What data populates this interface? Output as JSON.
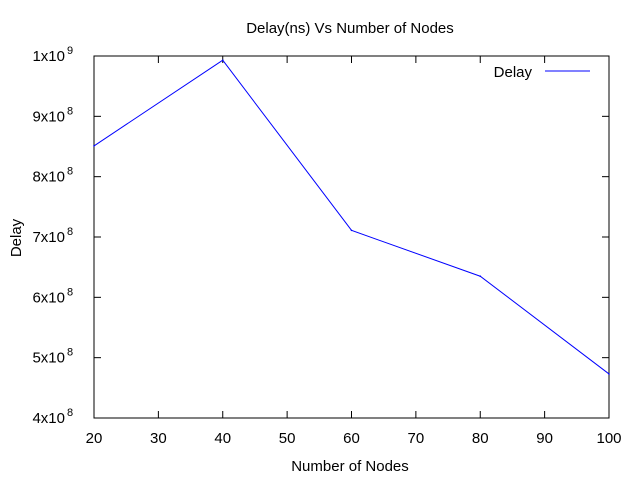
{
  "chart_data": {
    "type": "line",
    "title": "Delay(ns) Vs Number of Nodes",
    "xlabel": "Number of Nodes",
    "ylabel": "Delay",
    "xlim": [
      20,
      100
    ],
    "ylim": [
      400000000,
      1000000000
    ],
    "x_ticks": [
      {
        "value": 20,
        "label": "20"
      },
      {
        "value": 30,
        "label": "30"
      },
      {
        "value": 40,
        "label": "40"
      },
      {
        "value": 50,
        "label": "50"
      },
      {
        "value": 60,
        "label": "60"
      },
      {
        "value": 70,
        "label": "70"
      },
      {
        "value": 80,
        "label": "80"
      },
      {
        "value": 90,
        "label": "90"
      },
      {
        "value": 100,
        "label": "100"
      }
    ],
    "y_ticks": [
      {
        "value": 400000000,
        "mantissa": "4x10",
        "exponent": "8"
      },
      {
        "value": 500000000,
        "mantissa": "5x10",
        "exponent": "8"
      },
      {
        "value": 600000000,
        "mantissa": "6x10",
        "exponent": "8"
      },
      {
        "value": 700000000,
        "mantissa": "7x10",
        "exponent": "8"
      },
      {
        "value": 800000000,
        "mantissa": "8x10",
        "exponent": "8"
      },
      {
        "value": 900000000,
        "mantissa": "9x10",
        "exponent": "8"
      },
      {
        "value": 1000000000,
        "mantissa": "1x10",
        "exponent": "9"
      }
    ],
    "series": [
      {
        "name": "Delay",
        "color": "#0000ff",
        "x": [
          20,
          40,
          60,
          80,
          100
        ],
        "y": [
          851000000,
          993000000,
          711000000,
          635000000,
          473000000
        ]
      }
    ],
    "legend_position": "top-right",
    "grid": false
  }
}
